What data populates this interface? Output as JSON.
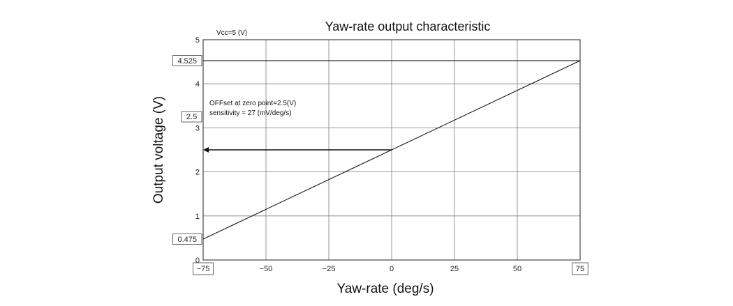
{
  "chart_data": {
    "type": "line",
    "title": "Yaw-rate output characteristic",
    "xlabel": "Yaw-rate (deg/s)",
    "ylabel": "Output voltage (V)",
    "xlim": [
      -75,
      75
    ],
    "ylim": [
      0,
      5
    ],
    "xticks": [
      -75,
      -50,
      -25,
      0,
      25,
      50,
      75
    ],
    "xtick_labels": [
      "-75",
      "−50",
      "−25",
      "0",
      "25",
      "50",
      "75"
    ],
    "yticks": [
      0,
      1,
      2,
      3,
      4,
      5
    ],
    "ytick_labels": [
      "0",
      "1",
      "2",
      "3",
      "4",
      "5"
    ],
    "grid": true,
    "series": [
      {
        "x": [
          -75,
          75
        ],
        "y": [
          0.475,
          4.525
        ]
      }
    ],
    "marked_values": {
      "y_high": "4.525",
      "y_offset": "2.5",
      "y_low": "0.475",
      "x_min": "−75",
      "x_max": "75"
    },
    "annotations": {
      "supply": "Vcc=5 (V)",
      "offset": "OFFset at zero point=2.5(V)",
      "sensitivity": "sensitivity = 27 (mV/deg/s)"
    }
  }
}
